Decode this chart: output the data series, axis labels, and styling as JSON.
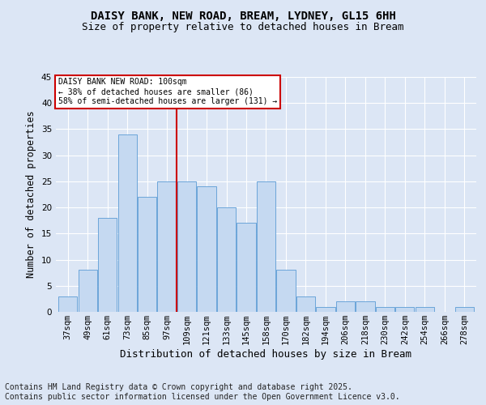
{
  "title1": "DAISY BANK, NEW ROAD, BREAM, LYDNEY, GL15 6HH",
  "title2": "Size of property relative to detached houses in Bream",
  "xlabel": "Distribution of detached houses by size in Bream",
  "ylabel": "Number of detached properties",
  "annotation_title": "DAISY BANK NEW ROAD: 100sqm",
  "annotation_line2": "← 38% of detached houses are smaller (86)",
  "annotation_line3": "58% of semi-detached houses are larger (131) →",
  "footer": "Contains HM Land Registry data © Crown copyright and database right 2025.\nContains public sector information licensed under the Open Government Licence v3.0.",
  "bar_labels": [
    "37sqm",
    "49sqm",
    "61sqm",
    "73sqm",
    "85sqm",
    "97sqm",
    "109sqm",
    "121sqm",
    "133sqm",
    "145sqm",
    "158sqm",
    "170sqm",
    "182sqm",
    "194sqm",
    "206sqm",
    "218sqm",
    "230sqm",
    "242sqm",
    "254sqm",
    "266sqm",
    "278sqm"
  ],
  "bar_values": [
    3,
    8,
    18,
    34,
    22,
    25,
    25,
    24,
    20,
    17,
    25,
    8,
    3,
    1,
    2,
    2,
    1,
    1,
    1,
    0,
    1
  ],
  "bar_color": "#c5d9f1",
  "bar_edge_color": "#5b9bd5",
  "vline_x": 5.5,
  "vline_color": "#cc0000",
  "ylim": [
    0,
    45
  ],
  "yticks": [
    0,
    5,
    10,
    15,
    20,
    25,
    30,
    35,
    40,
    45
  ],
  "bg_color": "#dce6f5",
  "grid_color": "#ffffff",
  "annotation_box_color": "#ffffff",
  "annotation_box_edge": "#cc0000",
  "title_fontsize": 10,
  "subtitle_fontsize": 9,
  "axis_label_fontsize": 8.5,
  "tick_fontsize": 7.5,
  "footer_fontsize": 7
}
